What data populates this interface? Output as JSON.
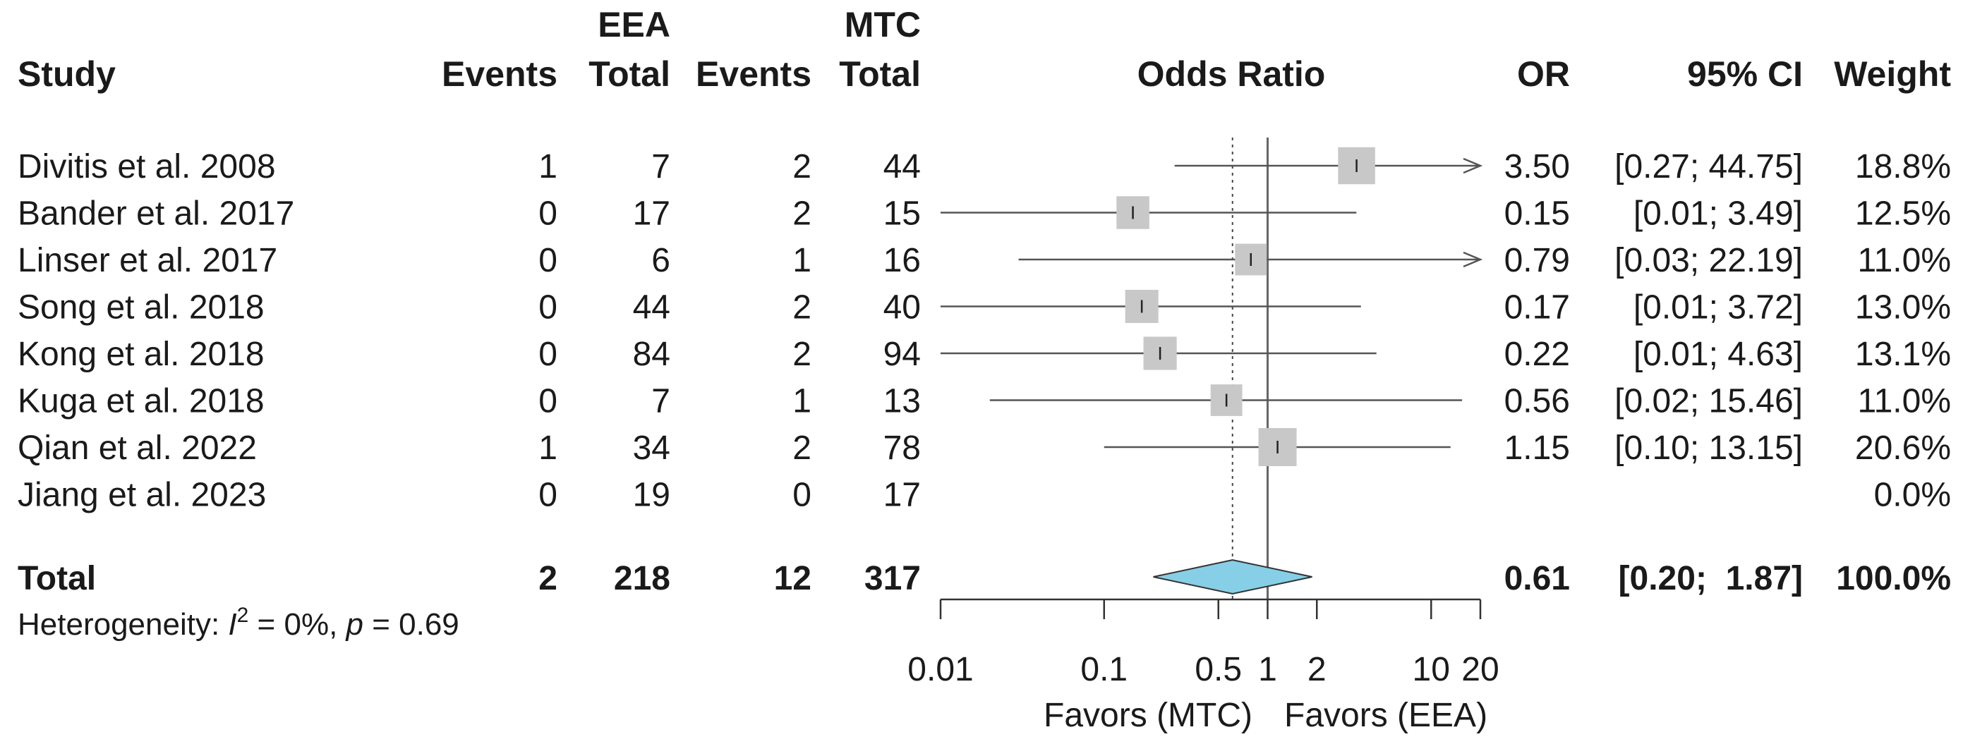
{
  "chart_data": {
    "type": "forest",
    "columns": {
      "eea_label": "EEA",
      "mtc_label": "MTC",
      "study": "Study",
      "events": "Events",
      "total": "Total",
      "plot_title": "Odds Ratio",
      "or": "OR",
      "ci": "95% CI",
      "weight": "Weight"
    },
    "studies": [
      {
        "name": "Divitis et al. 2008",
        "eea_events": "1",
        "eea_total": "7",
        "mtc_events": "2",
        "mtc_total": "44",
        "or": 3.5,
        "lo": 0.27,
        "hi": 44.75,
        "or_text": "3.50",
        "ci_text": "[0.27; 44.75]",
        "weight_text": "18.8%",
        "weight": 18.8
      },
      {
        "name": "Bander et al. 2017",
        "eea_events": "0",
        "eea_total": "17",
        "mtc_events": "2",
        "mtc_total": "15",
        "or": 0.15,
        "lo": 0.01,
        "hi": 3.49,
        "or_text": "0.15",
        "ci_text": "[0.01;  3.49]",
        "weight_text": "12.5%",
        "weight": 12.5
      },
      {
        "name": "Linser et al. 2017",
        "eea_events": "0",
        "eea_total": "6",
        "mtc_events": "1",
        "mtc_total": "16",
        "or": 0.79,
        "lo": 0.03,
        "hi": 22.19,
        "or_text": "0.79",
        "ci_text": "[0.03; 22.19]",
        "weight_text": "11.0%",
        "weight": 11.0
      },
      {
        "name": "Song et al. 2018",
        "eea_events": "0",
        "eea_total": "44",
        "mtc_events": "2",
        "mtc_total": "40",
        "or": 0.17,
        "lo": 0.01,
        "hi": 3.72,
        "or_text": "0.17",
        "ci_text": "[0.01;  3.72]",
        "weight_text": "13.0%",
        "weight": 13.0
      },
      {
        "name": "Kong et al. 2018",
        "eea_events": "0",
        "eea_total": "84",
        "mtc_events": "2",
        "mtc_total": "94",
        "or": 0.22,
        "lo": 0.01,
        "hi": 4.63,
        "or_text": "0.22",
        "ci_text": "[0.01;  4.63]",
        "weight_text": "13.1%",
        "weight": 13.1
      },
      {
        "name": "Kuga et al. 2018",
        "eea_events": "0",
        "eea_total": "7",
        "mtc_events": "1",
        "mtc_total": "13",
        "or": 0.56,
        "lo": 0.02,
        "hi": 15.46,
        "or_text": "0.56",
        "ci_text": "[0.02; 15.46]",
        "weight_text": "11.0%",
        "weight": 11.0
      },
      {
        "name": "Qian et al. 2022",
        "eea_events": "1",
        "eea_total": "34",
        "mtc_events": "2",
        "mtc_total": "78",
        "or": 1.15,
        "lo": 0.1,
        "hi": 13.15,
        "or_text": "1.15",
        "ci_text": "[0.10; 13.15]",
        "weight_text": "20.6%",
        "weight": 20.6
      },
      {
        "name": "Jiang et al. 2023",
        "eea_events": "0",
        "eea_total": "19",
        "mtc_events": "0",
        "mtc_total": "17",
        "or": null,
        "lo": null,
        "hi": null,
        "or_text": "",
        "ci_text": "",
        "weight_text": "0.0%",
        "weight": 0.0
      }
    ],
    "total": {
      "name": "Total",
      "eea_events": "2",
      "eea_total": "218",
      "mtc_events": "12",
      "mtc_total": "317",
      "or": 0.61,
      "lo": 0.2,
      "hi": 1.87,
      "or_text": "0.61",
      "ci_text": "[0.20;  1.87]",
      "weight_text": "100.0%"
    },
    "heterogeneity": {
      "prefix": "Heterogeneity: ",
      "i_symbol": "I",
      "i_sup": "2",
      "i_value": " = 0%, ",
      "p_symbol": "p",
      "p_value": " = 0.69"
    },
    "x_axis": {
      "scale": "log",
      "range": [
        0.01,
        20
      ],
      "ticks": [
        0.01,
        0.1,
        0.5,
        1,
        2,
        10,
        20
      ],
      "tick_labels": [
        "0.01",
        "0.1",
        "0.5",
        "1",
        "2",
        "10",
        "20"
      ],
      "label_left": "Favors (MTC)",
      "label_right": "Favors (EEA)"
    },
    "reference_line": 1,
    "pooled_line": 0.61,
    "colors": {
      "square": "#c8c8c8",
      "diamond": "#87cfe6",
      "line": "#555555",
      "text": "#1a1a1a"
    }
  }
}
